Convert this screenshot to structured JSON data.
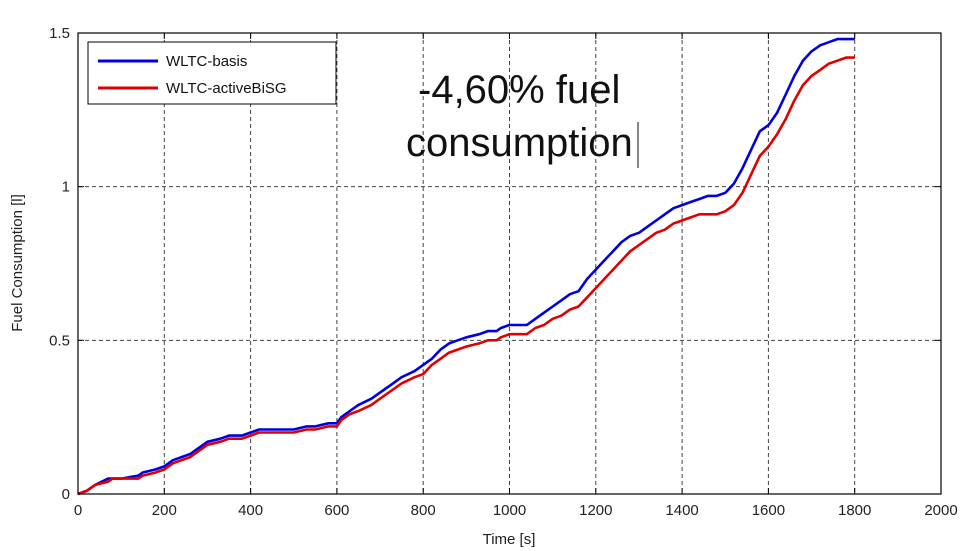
{
  "chart_data": {
    "type": "line",
    "title": "",
    "xlabel": "Time [s]",
    "ylabel": "Fuel Consumption [l]",
    "xlim": [
      0,
      2000
    ],
    "ylim": [
      0,
      1.5
    ],
    "xticks": [
      0,
      200,
      400,
      600,
      800,
      1000,
      1200,
      1400,
      1600,
      1800,
      2000
    ],
    "yticks": [
      0,
      0.5,
      1,
      1.5
    ],
    "xtick_labels": [
      "0",
      "200",
      "400",
      "600",
      "800",
      "1000",
      "1200",
      "1400",
      "1600",
      "1800",
      "2000"
    ],
    "ytick_labels": [
      "0",
      "0.5",
      "1",
      "1.5"
    ],
    "grid": true,
    "legend_position": "top-left",
    "annotation": {
      "line1": "-4,60% fuel",
      "line2": "consumption"
    },
    "series": [
      {
        "name": "WLTC-basis",
        "color": "#0000e0",
        "x": [
          0,
          20,
          40,
          70,
          80,
          100,
          140,
          150,
          180,
          200,
          220,
          240,
          260,
          280,
          300,
          330,
          350,
          380,
          400,
          420,
          450,
          470,
          500,
          530,
          550,
          580,
          600,
          610,
          630,
          650,
          680,
          700,
          730,
          750,
          780,
          800,
          820,
          840,
          860,
          880,
          900,
          930,
          950,
          970,
          980,
          1000,
          1020,
          1040,
          1060,
          1080,
          1100,
          1120,
          1140,
          1160,
          1180,
          1200,
          1220,
          1240,
          1260,
          1280,
          1300,
          1320,
          1340,
          1360,
          1380,
          1400,
          1420,
          1440,
          1460,
          1480,
          1500,
          1520,
          1540,
          1560,
          1580,
          1600,
          1620,
          1640,
          1660,
          1680,
          1700,
          1720,
          1740,
          1760,
          1780,
          1800
        ],
        "y": [
          0,
          0.01,
          0.03,
          0.05,
          0.05,
          0.05,
          0.06,
          0.07,
          0.08,
          0.09,
          0.11,
          0.12,
          0.13,
          0.15,
          0.17,
          0.18,
          0.19,
          0.19,
          0.2,
          0.21,
          0.21,
          0.21,
          0.21,
          0.22,
          0.22,
          0.23,
          0.23,
          0.25,
          0.27,
          0.29,
          0.31,
          0.33,
          0.36,
          0.38,
          0.4,
          0.42,
          0.44,
          0.47,
          0.49,
          0.5,
          0.51,
          0.52,
          0.53,
          0.53,
          0.54,
          0.55,
          0.55,
          0.55,
          0.57,
          0.59,
          0.61,
          0.63,
          0.65,
          0.66,
          0.7,
          0.73,
          0.76,
          0.79,
          0.82,
          0.84,
          0.85,
          0.87,
          0.89,
          0.91,
          0.93,
          0.94,
          0.95,
          0.96,
          0.97,
          0.97,
          0.98,
          1.01,
          1.06,
          1.12,
          1.18,
          1.2,
          1.24,
          1.3,
          1.36,
          1.41,
          1.44,
          1.46,
          1.47,
          1.48,
          1.48,
          1.48
        ]
      },
      {
        "name": "WLTC-activeBiSG",
        "color": "#e00000",
        "x": [
          0,
          20,
          40,
          70,
          80,
          100,
          140,
          150,
          180,
          200,
          220,
          240,
          260,
          280,
          300,
          330,
          350,
          380,
          400,
          420,
          450,
          470,
          500,
          530,
          550,
          580,
          600,
          610,
          630,
          650,
          680,
          700,
          730,
          750,
          780,
          800,
          820,
          840,
          860,
          880,
          900,
          930,
          950,
          970,
          980,
          1000,
          1020,
          1040,
          1060,
          1080,
          1100,
          1120,
          1140,
          1160,
          1180,
          1200,
          1220,
          1240,
          1260,
          1280,
          1300,
          1320,
          1340,
          1360,
          1380,
          1400,
          1420,
          1440,
          1460,
          1480,
          1500,
          1520,
          1540,
          1560,
          1580,
          1600,
          1620,
          1640,
          1660,
          1680,
          1700,
          1720,
          1740,
          1760,
          1780,
          1800
        ],
        "y": [
          0,
          0.01,
          0.03,
          0.04,
          0.05,
          0.05,
          0.05,
          0.06,
          0.07,
          0.08,
          0.1,
          0.11,
          0.12,
          0.14,
          0.16,
          0.17,
          0.18,
          0.18,
          0.19,
          0.2,
          0.2,
          0.2,
          0.2,
          0.21,
          0.21,
          0.22,
          0.22,
          0.24,
          0.26,
          0.27,
          0.29,
          0.31,
          0.34,
          0.36,
          0.38,
          0.39,
          0.42,
          0.44,
          0.46,
          0.47,
          0.48,
          0.49,
          0.5,
          0.5,
          0.51,
          0.52,
          0.52,
          0.52,
          0.54,
          0.55,
          0.57,
          0.58,
          0.6,
          0.61,
          0.64,
          0.67,
          0.7,
          0.73,
          0.76,
          0.79,
          0.81,
          0.83,
          0.85,
          0.86,
          0.88,
          0.89,
          0.9,
          0.91,
          0.91,
          0.91,
          0.92,
          0.94,
          0.98,
          1.04,
          1.1,
          1.13,
          1.17,
          1.22,
          1.28,
          1.33,
          1.36,
          1.38,
          1.4,
          1.41,
          1.42,
          1.42
        ]
      }
    ]
  }
}
